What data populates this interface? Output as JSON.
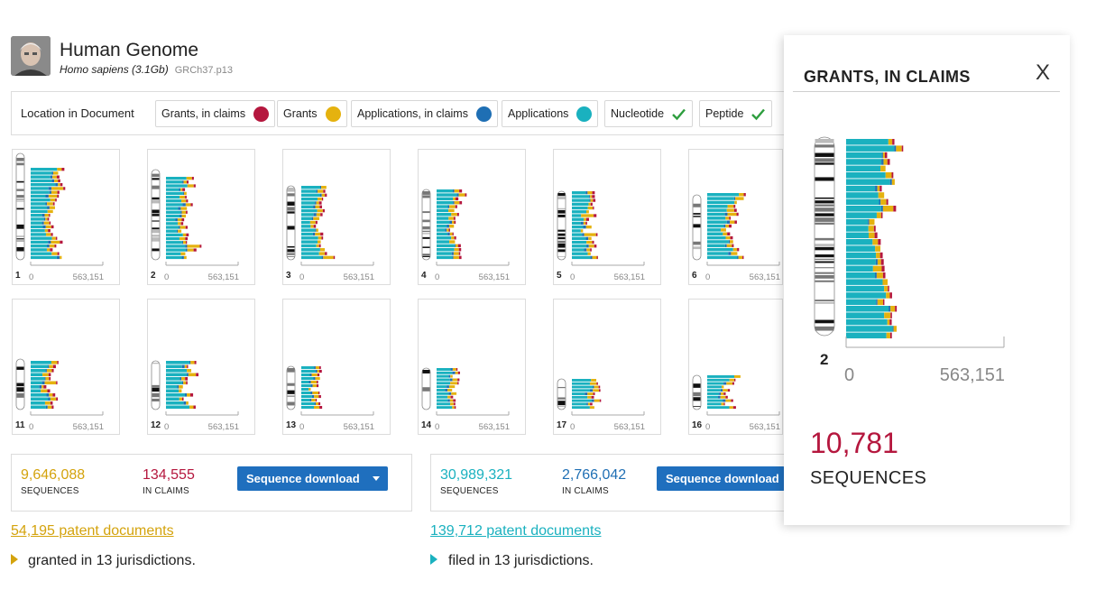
{
  "header": {
    "title": "Human Genome",
    "species": "Homo sapiens (3.1Gb)",
    "assembly": "GRCh37.p13"
  },
  "filters": {
    "label": "Location in Document",
    "items": [
      {
        "label": "Grants, in claims",
        "kind": "dot",
        "color": "#b5173e"
      },
      {
        "label": "Grants",
        "kind": "dot",
        "color": "#e5b20f"
      },
      {
        "label": "Applications, in claims",
        "kind": "dot",
        "color": "#1f6fb4"
      },
      {
        "label": "Applications",
        "kind": "dot",
        "color": "#1ab1bf"
      },
      {
        "label": "Nucleotide",
        "kind": "check",
        "color": "#2e9e3f"
      },
      {
        "label": "Peptide",
        "kind": "check",
        "color": "#2e9e3f"
      }
    ]
  },
  "colors": {
    "grants_in_claims": "#b5173e",
    "grants": "#e5b20f",
    "applications_in_claims": "#1f6fb4",
    "applications": "#1ab1bf"
  },
  "axis": {
    "min_label": "0",
    "max_label": "563,151"
  },
  "chromosomes": [
    {
      "label": "1"
    },
    {
      "label": "2"
    },
    {
      "label": "3"
    },
    {
      "label": "4"
    },
    {
      "label": "5"
    },
    {
      "label": "6"
    },
    {
      "label": "11"
    },
    {
      "label": "12"
    },
    {
      "label": "13"
    },
    {
      "label": "14"
    },
    {
      "label": "17"
    },
    {
      "label": "16"
    }
  ],
  "stats": {
    "grants": {
      "sequences_value": "9,646,088",
      "sequences_label": "SEQUENCES",
      "in_claims_value": "134,555",
      "in_claims_label": "IN CLAIMS",
      "download_label": "Sequence download",
      "docs_link": "54,195 patent documents",
      "docs_note": "granted in 13 jurisdictions."
    },
    "applications": {
      "sequences_value": "30,989,321",
      "sequences_label": "SEQUENCES",
      "in_claims_value": "2,766,042",
      "in_claims_label": "IN CLAIMS",
      "download_label": "Sequence download",
      "docs_link": "139,712 patent documents",
      "docs_note": "filed in 13 jurisdictions."
    }
  },
  "panel": {
    "title": "GRANTS, IN CLAIMS",
    "close_label": "X",
    "chromosome_label": "2",
    "axis_min": "0",
    "axis_max": "563,151",
    "count": "10,781",
    "count_label": "SEQUENCES"
  }
}
